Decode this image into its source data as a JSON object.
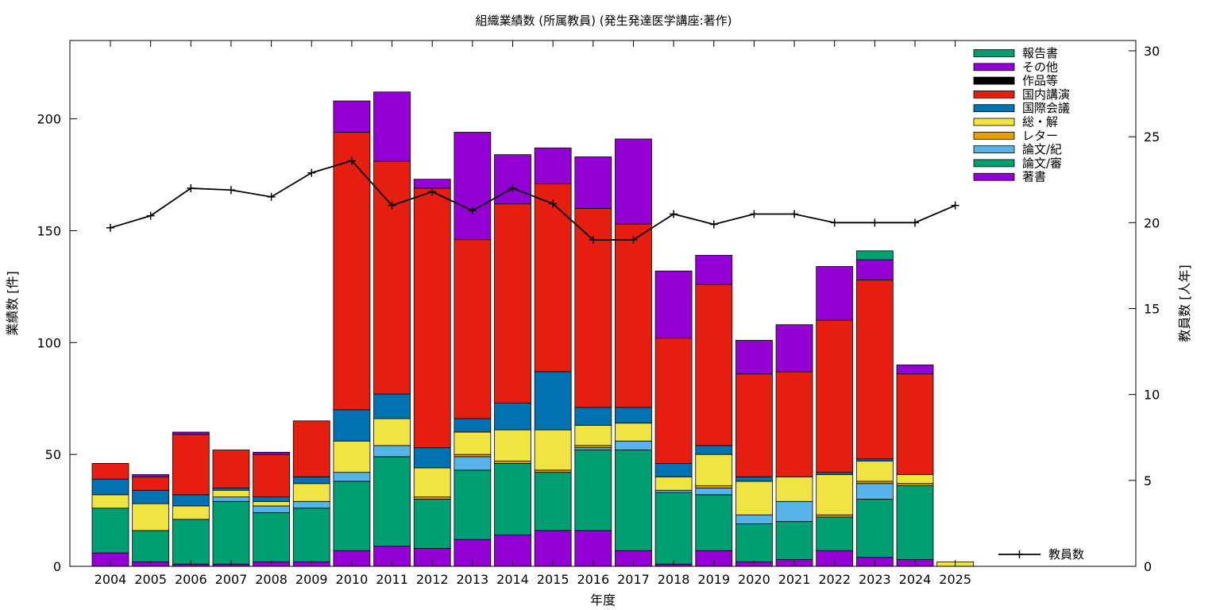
{
  "chart_data": {
    "type": "bar",
    "stacked": true,
    "title": "組織業績数 (所属教員) (発生発達医学講座:著作)",
    "xlabel": "年度",
    "ylabel": "業績数 [件]",
    "y2label": "教員数 [人年]",
    "ylim": [
      0,
      235
    ],
    "y2lim": [
      0,
      30.6
    ],
    "yticks": [
      0,
      50,
      100,
      150,
      200
    ],
    "y2ticks": [
      0,
      5,
      10,
      15,
      20,
      25,
      30
    ],
    "grid": false,
    "legend_position": "top-right",
    "categories": [
      "2004",
      "2005",
      "2006",
      "2007",
      "2008",
      "2009",
      "2010",
      "2011",
      "2012",
      "2013",
      "2014",
      "2015",
      "2016",
      "2017",
      "2018",
      "2019",
      "2020",
      "2021",
      "2022",
      "2023",
      "2024",
      "2025"
    ],
    "series": [
      {
        "name": "著書",
        "color": "#9400d3",
        "values": [
          6,
          2,
          1,
          1,
          2,
          2,
          7,
          9,
          8,
          12,
          14,
          16,
          16,
          7,
          1,
          7,
          2,
          3,
          7,
          4,
          3,
          0
        ]
      },
      {
        "name": "論文/審",
        "color": "#009e73",
        "values": [
          20,
          14,
          20,
          28,
          22,
          24,
          31,
          40,
          22,
          31,
          32,
          26,
          36,
          45,
          32,
          25,
          17,
          17,
          15,
          26,
          33,
          0
        ]
      },
      {
        "name": "論文/紀",
        "color": "#56b4e9",
        "values": [
          0,
          0,
          0,
          2,
          3,
          3,
          4,
          5,
          0,
          6,
          0,
          0,
          1,
          4,
          1,
          3,
          4,
          9,
          0,
          7,
          0,
          0
        ]
      },
      {
        "name": "レター",
        "color": "#e69f00",
        "values": [
          0,
          0,
          0,
          0,
          0,
          0,
          0,
          0,
          1,
          1,
          1,
          1,
          1,
          0,
          0,
          1,
          0,
          0,
          1,
          1,
          1,
          0
        ]
      },
      {
        "name": "総・解",
        "color": "#f0e442",
        "values": [
          6,
          12,
          6,
          3,
          2,
          8,
          14,
          12,
          13,
          10,
          14,
          18,
          9,
          8,
          6,
          14,
          15,
          11,
          18,
          9,
          4,
          2
        ]
      },
      {
        "name": "国際会議",
        "color": "#0072b2",
        "values": [
          7,
          6,
          5,
          1,
          2,
          3,
          14,
          11,
          9,
          6,
          12,
          26,
          8,
          7,
          6,
          4,
          2,
          0,
          1,
          1,
          0,
          0
        ]
      },
      {
        "name": "国内講演",
        "color": "#e51e10",
        "values": [
          7,
          6,
          27,
          17,
          19,
          25,
          124,
          104,
          116,
          80,
          89,
          84,
          89,
          82,
          56,
          72,
          46,
          47,
          68,
          80,
          45,
          0
        ]
      },
      {
        "name": "作品等",
        "color": "#000000",
        "values": [
          0,
          0,
          0,
          0,
          0,
          0,
          0,
          0,
          0,
          0,
          0,
          0,
          0,
          0,
          0,
          0,
          0,
          0,
          0,
          0,
          0,
          0
        ]
      },
      {
        "name": "その他",
        "color": "#9400d3",
        "values": [
          0,
          1,
          1,
          0,
          1,
          0,
          14,
          31,
          4,
          48,
          22,
          16,
          23,
          38,
          30,
          13,
          15,
          21,
          24,
          9,
          4,
          0
        ]
      },
      {
        "name": "報告書",
        "color": "#009e73",
        "values": [
          0,
          0,
          0,
          0,
          0,
          0,
          0,
          0,
          0,
          0,
          0,
          0,
          0,
          0,
          0,
          0,
          0,
          0,
          0,
          4,
          0,
          0
        ]
      }
    ],
    "line_series": {
      "name": "教員数",
      "axis": "y2",
      "color": "#000000",
      "values": [
        19.7,
        20.4,
        22,
        21.9,
        21.5,
        22.9,
        23.6,
        21,
        21.8,
        20.7,
        22,
        21.1,
        19,
        19,
        20.5,
        19.9,
        20.5,
        20.5,
        20,
        20,
        20,
        21
      ]
    }
  }
}
